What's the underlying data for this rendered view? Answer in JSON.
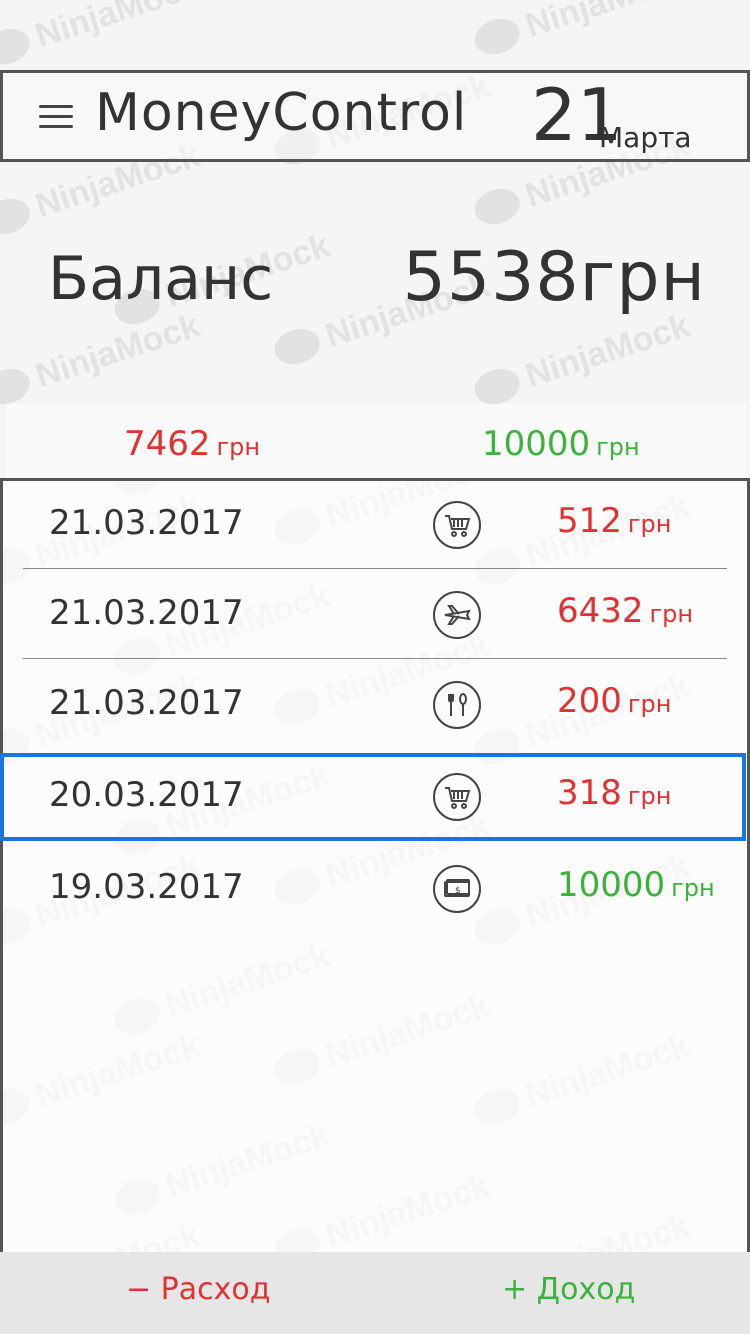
{
  "header": {
    "title": "MoneyControl",
    "date_day": "21",
    "date_month": "Марта"
  },
  "balance": {
    "label": "Баланс",
    "value": "5538грн"
  },
  "summary": {
    "expense_value": "7462",
    "expense_unit": "грн",
    "income_value": "10000",
    "income_unit": "грн"
  },
  "transactions": [
    {
      "date": "21.03.2017",
      "icon": "shopping-cart-icon",
      "amount": "512",
      "unit": "грн",
      "type": "expense"
    },
    {
      "date": "21.03.2017",
      "icon": "airplane-icon",
      "amount": "6432",
      "unit": "грн",
      "type": "expense"
    },
    {
      "date": "21.03.2017",
      "icon": "fork-spoon-icon",
      "amount": "200",
      "unit": "грн",
      "type": "expense"
    },
    {
      "date": "20.03.2017",
      "icon": "shopping-cart-icon",
      "amount": "318",
      "unit": "грн",
      "type": "expense"
    },
    {
      "date": "19.03.2017",
      "icon": "money-icon",
      "amount": "10000",
      "unit": "грн",
      "type": "income"
    }
  ],
  "footer": {
    "expense_button": "− Расход",
    "income_button": "+ Доход"
  },
  "colors": {
    "expense": "#e03232",
    "income": "#3bb33b",
    "selection": "#1976e0"
  }
}
